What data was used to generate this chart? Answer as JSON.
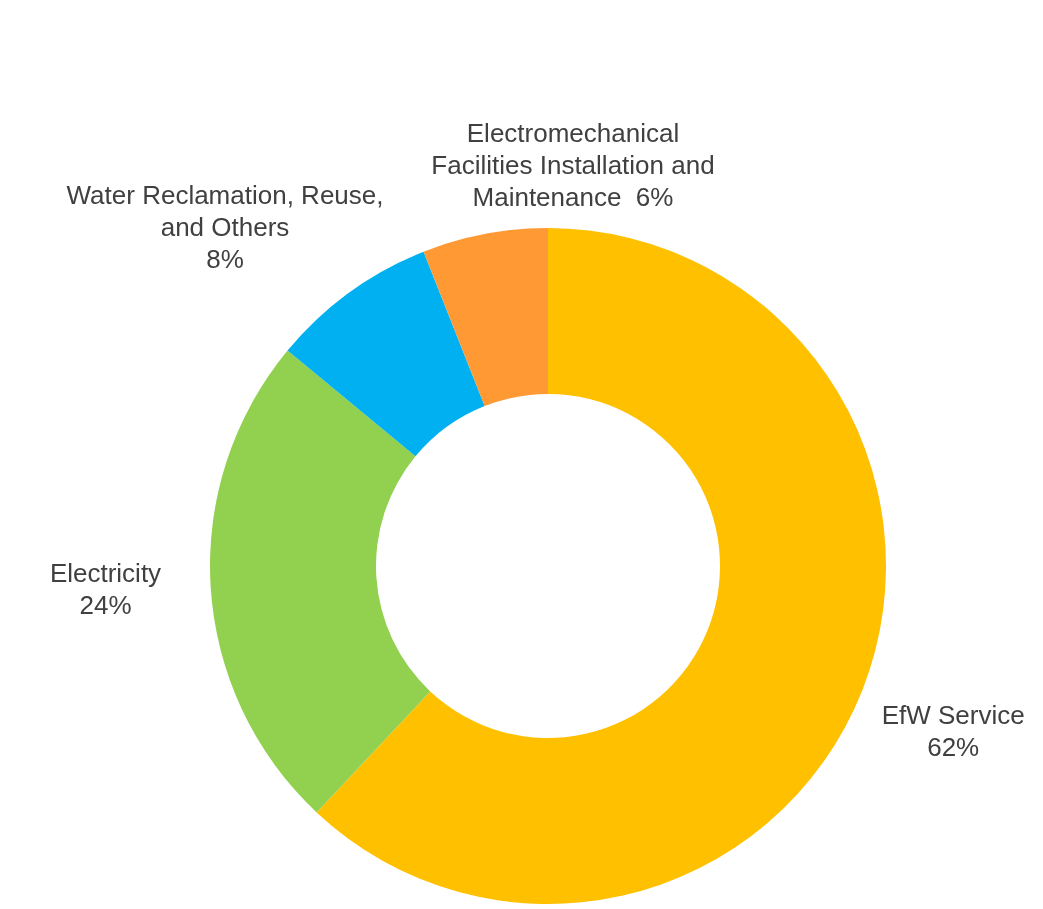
{
  "chart_data": {
    "type": "donut",
    "categories": [
      "EfW Service",
      "Electricity",
      "Water Reclamation, Reuse, and Others",
      "Electromechanical Facilities Installation and Maintenance"
    ],
    "values": [
      62,
      24,
      8,
      6
    ],
    "colors": [
      "#ffc000",
      "#92d050",
      "#00b0f0",
      "#ff9933"
    ],
    "value_labels": [
      "62%",
      "24%",
      "8%",
      "6%"
    ]
  }
}
